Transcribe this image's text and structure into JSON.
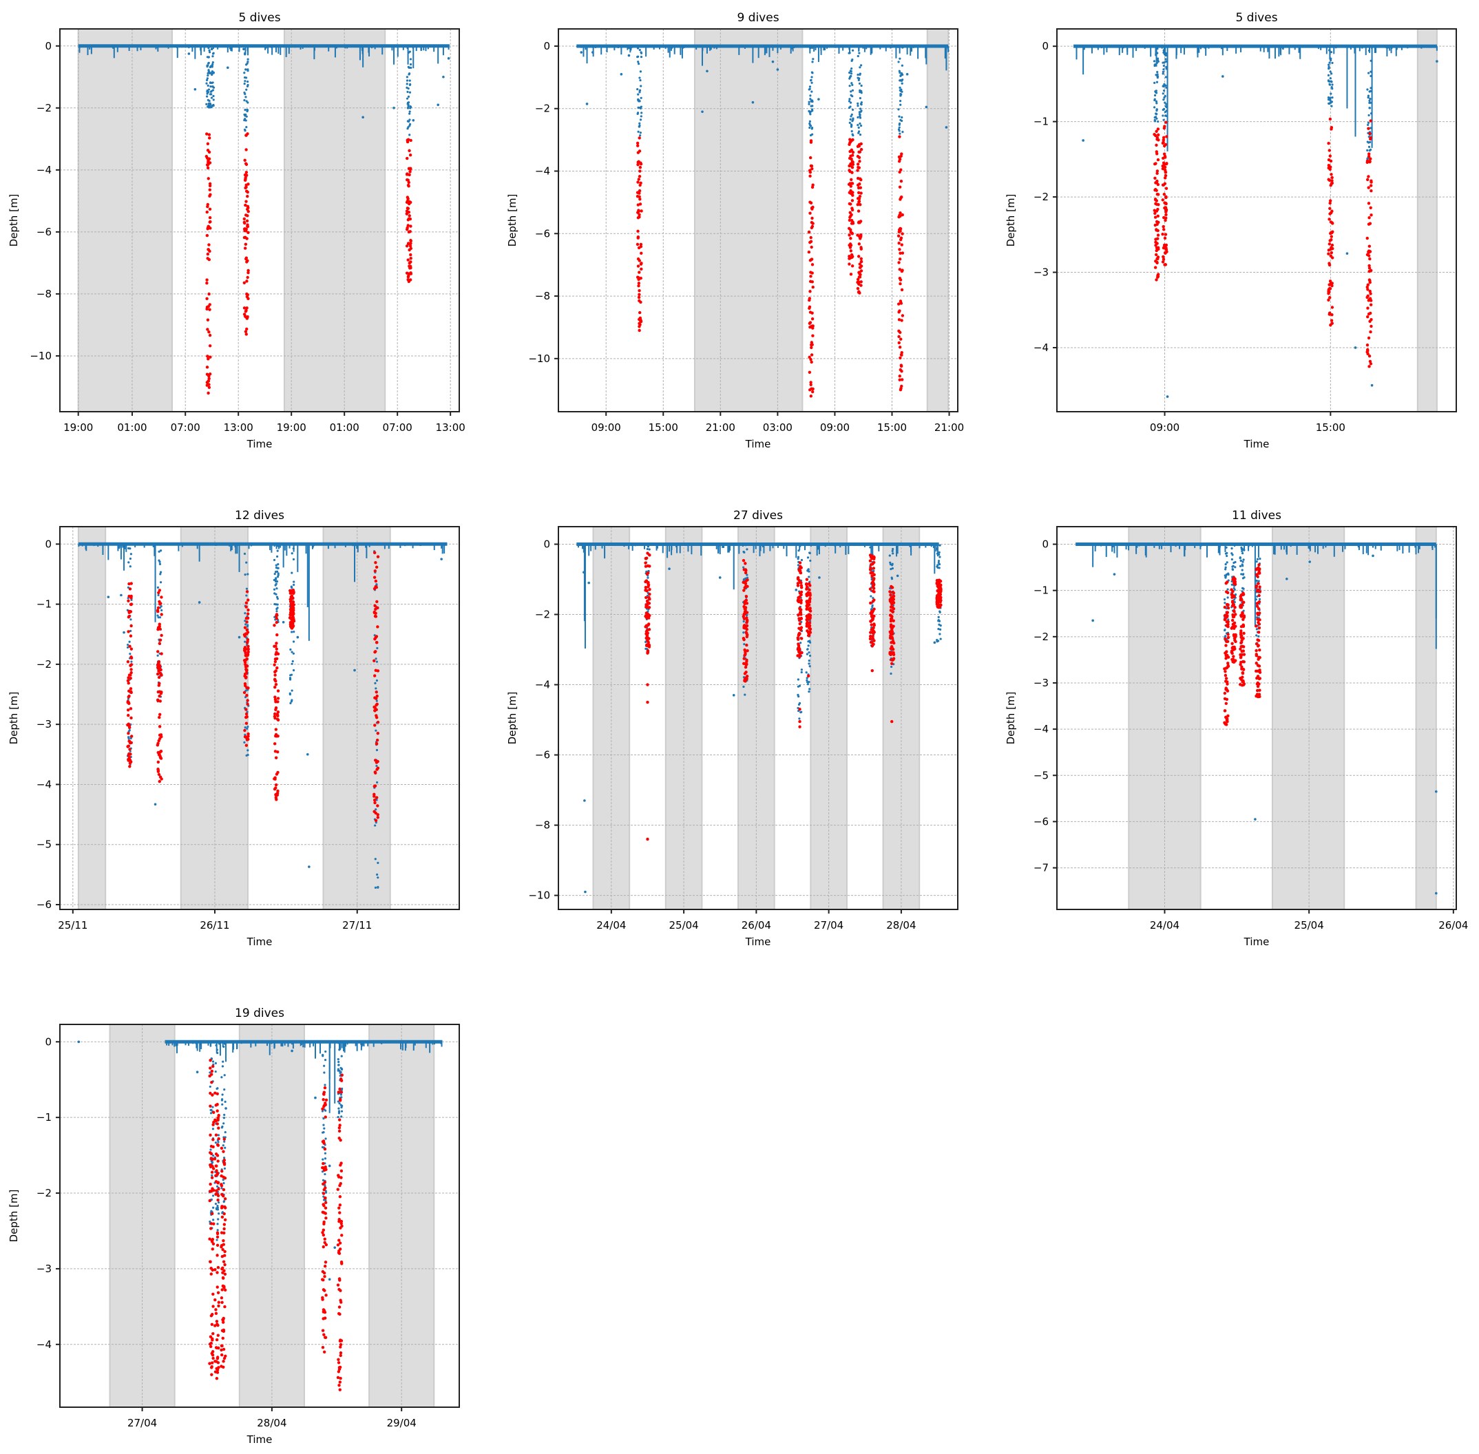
{
  "figure": {
    "marker_colors": {
      "surface": "#1f77b4",
      "dive": "#ff0000",
      "night": "#dddddd",
      "night_edge": "#cccccc",
      "grid": "#b0b0b0"
    }
  },
  "chart_data": [
    {
      "type": "scatter",
      "title": "5 dives",
      "xlabel": "Time",
      "ylabel": "Depth [m]",
      "grid": true,
      "x_units": "hours from axis start",
      "xlim": [
        0,
        45.2
      ],
      "ylim": [
        -11.8,
        0.55
      ],
      "xticks": [
        {
          "x": 2.08,
          "label": "19:00"
        },
        {
          "x": 8.18,
          "label": "01:00"
        },
        {
          "x": 14.2,
          "label": "07:00"
        },
        {
          "x": 20.2,
          "label": "13:00"
        },
        {
          "x": 26.2,
          "label": "19:00"
        },
        {
          "x": 32.2,
          "label": "01:00"
        },
        {
          "x": 38.2,
          "label": "07:00"
        },
        {
          "x": 44.2,
          "label": "13:00"
        }
      ],
      "yticks": [
        0,
        -2,
        -4,
        -6,
        -8,
        -10
      ],
      "ytick_labels": [
        "0",
        "−2",
        "−4",
        "−6",
        "−8",
        "−10"
      ],
      "night": [
        [
          2.08,
          12.7
        ],
        [
          25.4,
          36.8
        ]
      ],
      "surface_span": [
        2.08,
        44.1
      ],
      "surface_dips": [
        {
          "x": 14.6,
          "min": -0.25
        },
        {
          "x": 15.3,
          "min": -1.4
        },
        {
          "x": 17.2,
          "min": -0.1
        },
        {
          "x": 19.0,
          "min": -0.7
        },
        {
          "x": 20.8,
          "min": -0.1
        },
        {
          "x": 23.3,
          "min": -0.05
        },
        {
          "x": 34.3,
          "min": -2.3
        },
        {
          "x": 37.8,
          "min": -2.0
        },
        {
          "x": 39.4,
          "min": -2.0
        },
        {
          "x": 40.0,
          "min": -2.4
        },
        {
          "x": 42.8,
          "min": -1.9
        },
        {
          "x": 43.4,
          "min": -1.0
        },
        {
          "x": 44.0,
          "min": -0.4
        }
      ],
      "dives": [
        {
          "x": 16.8,
          "blue_to": -2.0,
          "red_top": -2.8,
          "red_bottom": -11.2
        },
        {
          "x": 17.2,
          "blue_to": -2.0,
          "red_top": null,
          "red_bottom": null
        },
        {
          "x": 21.1,
          "blue_to": -2.8,
          "red_top": -2.8,
          "red_bottom": -9.3
        },
        {
          "x": 39.5,
          "blue_to": -2.9,
          "red_top": -2.9,
          "red_bottom": -7.6
        }
      ]
    },
    {
      "type": "scatter",
      "title": "9 dives",
      "xlabel": "Time",
      "ylabel": "Depth [m]",
      "grid": true,
      "x_units": "hours from axis start",
      "xlim": [
        0,
        41.9
      ],
      "ylim": [
        -11.7,
        0.55
      ],
      "xticks": [
        {
          "x": 5.0,
          "label": "09:00"
        },
        {
          "x": 11.0,
          "label": "15:00"
        },
        {
          "x": 17.0,
          "label": "21:00"
        },
        {
          "x": 23.0,
          "label": "03:00"
        },
        {
          "x": 29.0,
          "label": "09:00"
        },
        {
          "x": 35.0,
          "label": "15:00"
        },
        {
          "x": 41.0,
          "label": "21:00"
        }
      ],
      "yticks": [
        0,
        -2,
        -4,
        -6,
        -8,
        -10
      ],
      "ytick_labels": [
        "0",
        "−2",
        "−4",
        "−6",
        "−8",
        "−10"
      ],
      "night": [
        [
          14.3,
          25.6
        ],
        [
          38.7,
          40.9
        ]
      ],
      "surface_span": [
        1.9,
        40.9
      ],
      "surface_dips": [
        {
          "x": 2.4,
          "min": -0.2
        },
        {
          "x": 3.0,
          "min": -1.85
        },
        {
          "x": 3.6,
          "min": -0.2
        },
        {
          "x": 6.6,
          "min": -0.9
        },
        {
          "x": 7.4,
          "min": -0.3
        },
        {
          "x": 15.1,
          "min": -2.1
        },
        {
          "x": 15.6,
          "min": -0.8
        },
        {
          "x": 20.4,
          "min": -1.8
        },
        {
          "x": 22.5,
          "min": -0.5
        },
        {
          "x": 23.0,
          "min": -0.75
        },
        {
          "x": 27.3,
          "min": -1.7
        },
        {
          "x": 36.6,
          "min": -0.9
        },
        {
          "x": 38.6,
          "min": -1.95
        },
        {
          "x": 40.7,
          "min": -2.6
        }
      ],
      "dives": [
        {
          "x": 8.5,
          "blue_to": -2.9,
          "red_top": -2.9,
          "red_bottom": -9.1
        },
        {
          "x": 26.5,
          "blue_to": -2.9,
          "red_top": -3.0,
          "red_bottom": -11.2
        },
        {
          "x": 30.7,
          "blue_to": -2.9,
          "red_top": -2.9,
          "red_bottom": -7.3
        },
        {
          "x": 31.6,
          "blue_to": -2.9,
          "red_top": -2.9,
          "red_bottom": -7.9
        },
        {
          "x": 35.9,
          "blue_to": -2.9,
          "red_top": -2.9,
          "red_bottom": -11.0
        }
      ]
    },
    {
      "type": "scatter",
      "title": "5 dives",
      "xlabel": "Time",
      "ylabel": "Depth [m]",
      "grid": true,
      "x_units": "hours from axis start",
      "xlim": [
        0,
        14.45
      ],
      "ylim": [
        -4.85,
        0.23
      ],
      "xticks": [
        {
          "x": 3.9,
          "label": "09:00"
        },
        {
          "x": 9.9,
          "label": "15:00"
        }
      ],
      "yticks": [
        0,
        -1,
        -2,
        -3,
        -4
      ],
      "ytick_labels": [
        "0",
        "−1",
        "−2",
        "−3",
        "−4"
      ],
      "night": [
        [
          13.05,
          13.75
        ]
      ],
      "surface_span": [
        0.6,
        13.75
      ],
      "surface_dips": [
        {
          "x": 0.95,
          "min": -1.25
        },
        {
          "x": 3.6,
          "min": -0.9
        },
        {
          "x": 4.0,
          "min": -4.65
        },
        {
          "x": 6.0,
          "min": -0.4
        },
        {
          "x": 10.5,
          "min": -2.75
        },
        {
          "x": 10.8,
          "min": -4.0
        },
        {
          "x": 11.4,
          "min": -4.5
        },
        {
          "x": 13.75,
          "min": -0.2
        }
      ],
      "dives": [
        {
          "x": 3.6,
          "blue_to": -1.0,
          "red_top": -1.05,
          "red_bottom": -3.1
        },
        {
          "x": 3.9,
          "blue_to": -1.0,
          "red_top": -1.0,
          "red_bottom": -2.9
        },
        {
          "x": 9.9,
          "blue_to": -0.8,
          "red_top": -0.85,
          "red_bottom": -3.7
        },
        {
          "x": 11.3,
          "blue_to": -1.5,
          "red_top": -0.9,
          "red_bottom": -4.25
        }
      ]
    },
    {
      "type": "scatter",
      "title": "12 dives",
      "xlabel": "Time",
      "ylabel": "Depth [m]",
      "grid": true,
      "x_units": "days from axis start",
      "xlim": [
        0,
        2.805
      ],
      "ylim": [
        -6.08,
        0.29
      ],
      "xticks": [
        {
          "x": 0.091,
          "label": "25/11"
        },
        {
          "x": 1.088,
          "label": "26/11"
        },
        {
          "x": 2.088,
          "label": "27/11"
        }
      ],
      "yticks": [
        0,
        -1,
        -2,
        -3,
        -4,
        -5,
        -6
      ],
      "ytick_labels": [
        "0",
        "−1",
        "−2",
        "−3",
        "−4",
        "−5",
        "−6"
      ],
      "night": [
        [
          0.13,
          0.32
        ],
        [
          0.85,
          1.32
        ],
        [
          1.85,
          2.32
        ]
      ],
      "surface_span": [
        0.13,
        2.72
      ],
      "surface_dips": [
        {
          "x": 0.34,
          "min": -0.88
        },
        {
          "x": 0.43,
          "min": -0.85
        },
        {
          "x": 0.45,
          "min": -1.47
        },
        {
          "x": 0.67,
          "min": -4.33
        },
        {
          "x": 0.98,
          "min": -0.97
        },
        {
          "x": 1.26,
          "min": -1.55
        },
        {
          "x": 1.57,
          "min": -1.3
        },
        {
          "x": 1.67,
          "min": -1.55
        },
        {
          "x": 1.74,
          "min": -3.5
        },
        {
          "x": 1.75,
          "min": -5.37
        },
        {
          "x": 2.07,
          "min": -2.1
        },
        {
          "x": 2.68,
          "min": -0.25
        }
      ],
      "dives": [
        {
          "x": 0.49,
          "blue_to": -3.7,
          "red_top": -0.65,
          "red_bottom": -3.7
        },
        {
          "x": 0.7,
          "blue_to": -2.7,
          "red_top": -0.7,
          "red_bottom": -3.95
        },
        {
          "x": 1.31,
          "blue_to": -3.55,
          "red_top": -0.75,
          "red_bottom": -3.35
        },
        {
          "x": 1.52,
          "blue_to": -1.3,
          "red_top": -1.0,
          "red_bottom": -4.25
        },
        {
          "x": 1.63,
          "blue_to": -2.7,
          "red_top": -0.75,
          "red_bottom": -1.4
        },
        {
          "x": 2.22,
          "blue_to": -5.8,
          "red_top": -0.1,
          "red_bottom": -4.6
        }
      ]
    },
    {
      "type": "scatter",
      "title": "27 dives",
      "xlabel": "Time",
      "ylabel": "Depth [m]",
      "grid": true,
      "x_units": "days from axis start",
      "xlim": [
        0,
        5.51
      ],
      "ylim": [
        -10.4,
        0.5
      ],
      "xticks": [
        {
          "x": 0.73,
          "label": "24/04"
        },
        {
          "x": 1.73,
          "label": "25/04"
        },
        {
          "x": 2.73,
          "label": "26/04"
        },
        {
          "x": 3.73,
          "label": "27/04"
        },
        {
          "x": 4.73,
          "label": "28/04"
        }
      ],
      "yticks": [
        0,
        -2,
        -4,
        -6,
        -8,
        -10
      ],
      "ytick_labels": [
        "0",
        "−2",
        "−4",
        "−6",
        "−8",
        "−10"
      ],
      "night": [
        [
          0.48,
          0.98
        ],
        [
          1.48,
          1.98
        ],
        [
          2.48,
          2.98
        ],
        [
          3.48,
          3.98
        ],
        [
          4.48,
          4.98
        ]
      ],
      "surface_span": [
        0.25,
        5.25
      ],
      "surface_dips": [
        {
          "x": 0.35,
          "min": -0.8
        },
        {
          "x": 0.42,
          "min": -1.1
        },
        {
          "x": 0.37,
          "min": -9.9
        },
        {
          "x": 0.36,
          "min": -7.3
        },
        {
          "x": 1.53,
          "min": -0.7
        },
        {
          "x": 2.23,
          "min": -0.95
        },
        {
          "x": 2.42,
          "min": -4.3
        },
        {
          "x": 3.28,
          "min": -1.3
        },
        {
          "x": 3.6,
          "min": -0.95
        },
        {
          "x": 4.68,
          "min": -0.9
        },
        {
          "x": 5.19,
          "min": -2.8
        }
      ],
      "dives": [
        {
          "x": 1.23,
          "blue_to": -3.1,
          "red_top": -0.2,
          "red_bottom": -3.1,
          "outliers": [
            -4.0,
            -4.5,
            -8.4
          ]
        },
        {
          "x": 2.58,
          "blue_to": -4.3,
          "red_top": -0.3,
          "red_bottom": -3.9
        },
        {
          "x": 3.33,
          "blue_to": -5.1,
          "red_top": -0.5,
          "red_bottom": -3.2,
          "outliers": [
            -4.7,
            -5.05,
            -5.2
          ]
        },
        {
          "x": 3.45,
          "blue_to": -4.2,
          "red_top": -1.0,
          "red_bottom": -2.6,
          "outliers": [
            -3.75
          ]
        },
        {
          "x": 4.33,
          "blue_to": -3.0,
          "red_top": -0.3,
          "red_bottom": -2.9,
          "outliers": [
            -3.6
          ]
        },
        {
          "x": 4.6,
          "blue_to": -3.7,
          "red_top": -1.2,
          "red_bottom": -3.4,
          "outliers": [
            -5.05
          ]
        },
        {
          "x": 5.25,
          "blue_to": -2.8,
          "red_top": -1.0,
          "red_bottom": -1.8
        }
      ]
    },
    {
      "type": "scatter",
      "title": "11 dives",
      "xlabel": "Time",
      "ylabel": "Depth [m]",
      "grid": true,
      "x_units": "days from axis start",
      "xlim": [
        0,
        2.78
      ],
      "ylim": [
        -7.9,
        0.38
      ],
      "xticks": [
        {
          "x": 0.75,
          "label": "24/04"
        },
        {
          "x": 1.755,
          "label": "25/04"
        },
        {
          "x": 2.76,
          "label": "26/04"
        }
      ],
      "yticks": [
        0,
        -1,
        -2,
        -3,
        -4,
        -5,
        -6,
        -7
      ],
      "ytick_labels": [
        "0",
        "−1",
        "−2",
        "−3",
        "−4",
        "−5",
        "−6",
        "−7"
      ],
      "night": [
        [
          0.5,
          1.0
        ],
        [
          1.5,
          2.0
        ],
        [
          2.5,
          2.64
        ]
      ],
      "surface_span": [
        0.13,
        2.64
      ],
      "surface_dips": [
        {
          "x": 0.25,
          "min": -1.65
        },
        {
          "x": 0.4,
          "min": -0.65
        },
        {
          "x": 1.6,
          "min": -0.75
        },
        {
          "x": 1.76,
          "min": -0.38
        },
        {
          "x": 2.64,
          "min": -7.55
        },
        {
          "x": 2.64,
          "min": -5.35
        },
        {
          "x": 1.38,
          "min": -5.95
        },
        {
          "x": 2.2,
          "min": -0.25
        }
      ],
      "dives": [
        {
          "x": 1.18,
          "blue_to": -2.1,
          "red_top": -0.8,
          "red_bottom": -3.9
        },
        {
          "x": 1.23,
          "blue_to": -1.5,
          "red_top": -0.7,
          "red_bottom": -2.55
        },
        {
          "x": 1.29,
          "blue_to": -1.6,
          "red_top": -1.05,
          "red_bottom": -3.05
        },
        {
          "x": 1.4,
          "blue_to": -2.2,
          "red_top": -0.4,
          "red_bottom": -3.3
        }
      ]
    },
    {
      "type": "scatter",
      "title": "19 dives",
      "xlabel": "Time",
      "ylabel": "Depth [m]",
      "grid": true,
      "x_units": "days from axis start",
      "xlim": [
        0,
        3.08
      ],
      "ylim": [
        -4.83,
        0.23
      ],
      "xticks": [
        {
          "x": 0.635,
          "label": "27/04"
        },
        {
          "x": 1.635,
          "label": "28/04"
        },
        {
          "x": 2.635,
          "label": "29/04"
        }
      ],
      "yticks": [
        0,
        -1,
        -2,
        -3,
        -4
      ],
      "ytick_labels": [
        "0",
        "−1",
        "−2",
        "−3",
        "−4"
      ],
      "night": [
        [
          0.385,
          0.885
        ],
        [
          1.385,
          1.885
        ],
        [
          2.385,
          2.885
        ]
      ],
      "surface_span": [
        0.81,
        2.95
      ],
      "surface_dips": [
        {
          "x": 0.145,
          "min": 0.0
        },
        {
          "x": 1.06,
          "min": -0.4
        },
        {
          "x": 1.28,
          "min": -0.88
        },
        {
          "x": 1.97,
          "min": -0.74
        },
        {
          "x": 2.08,
          "min": -1.64
        },
        {
          "x": 2.08,
          "min": -3.14
        },
        {
          "x": 1.79,
          "min": -0.12
        },
        {
          "x": 2.12,
          "min": -2.72
        }
      ],
      "dives": [
        {
          "x": 1.17,
          "blue_to": -2.55,
          "red_top": -0.15,
          "red_bottom": -4.4
        },
        {
          "x": 1.21,
          "blue_to": -2.7,
          "red_top": -0.5,
          "red_bottom": -4.45
        },
        {
          "x": 1.26,
          "blue_to": -2.35,
          "red_top": -1.2,
          "red_bottom": -4.3
        },
        {
          "x": 2.04,
          "blue_to": -2.1,
          "red_top": -0.6,
          "red_bottom": -4.1
        },
        {
          "x": 2.16,
          "blue_to": -1.0,
          "red_top": -0.4,
          "red_bottom": -4.6
        }
      ]
    }
  ]
}
